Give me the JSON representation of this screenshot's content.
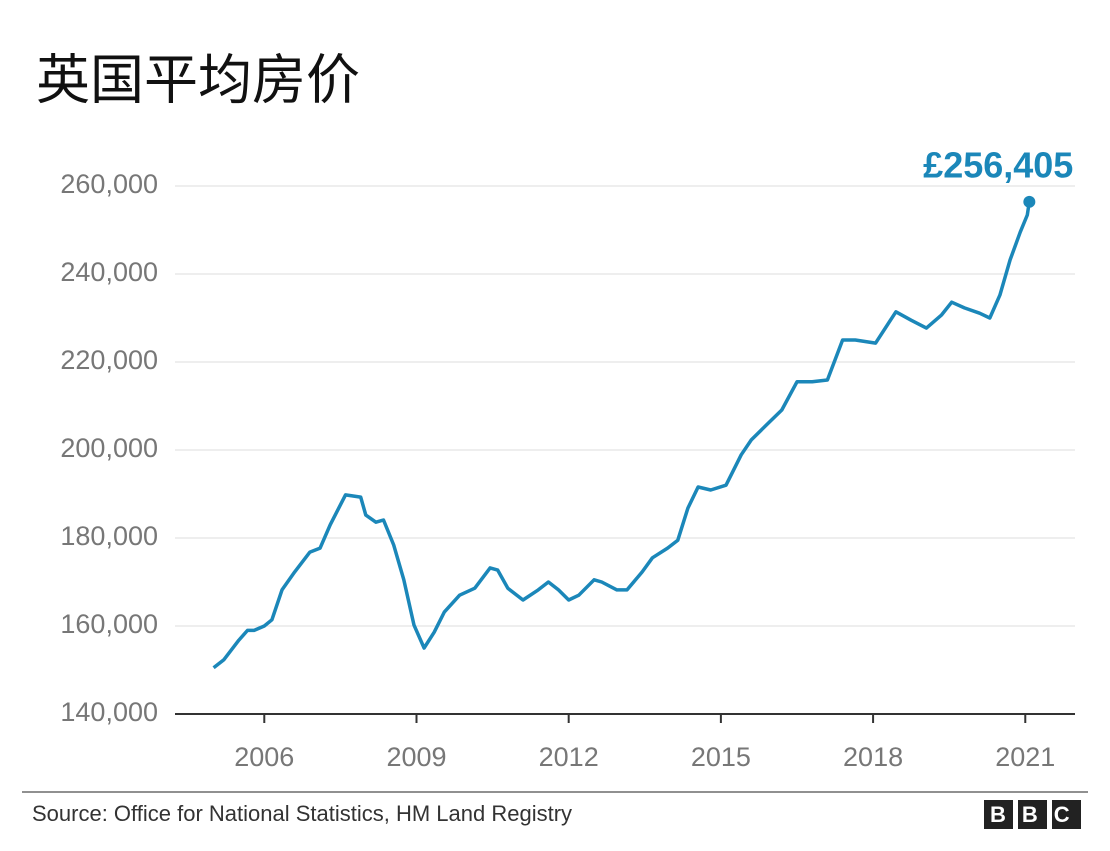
{
  "chart_data": {
    "type": "line",
    "title": "英国平均房价",
    "annotation": "£256,405",
    "source": "Source: Office for National Statistics, HM Land Registry",
    "logo": "BBC",
    "xlim": [
      2004.24,
      2021.98
    ],
    "xticks": [
      2006,
      2009,
      2012,
      2015,
      2018,
      2021
    ],
    "ylim": [
      140000,
      260000
    ],
    "yticks": [
      {
        "value": 140000,
        "label": "140,000"
      },
      {
        "value": 160000,
        "label": "160,000"
      },
      {
        "value": 180000,
        "label": "180,000"
      },
      {
        "value": 200000,
        "label": "200,000"
      },
      {
        "value": 220000,
        "label": "220,000"
      },
      {
        "value": 240000,
        "label": "240,000"
      },
      {
        "value": 260000,
        "label": "260,000"
      }
    ],
    "grid": true,
    "x": [
      2005.0,
      2005.2,
      2005.5,
      2005.67,
      2005.8,
      2006.0,
      2006.15,
      2006.35,
      2006.6,
      2006.9,
      2007.1,
      2007.3,
      2007.6,
      2007.9,
      2008.0,
      2008.2,
      2008.35,
      2008.55,
      2008.75,
      2008.95,
      2009.15,
      2009.35,
      2009.55,
      2009.85,
      2010.15,
      2010.45,
      2010.6,
      2010.8,
      2011.1,
      2011.4,
      2011.6,
      2011.8,
      2012.0,
      2012.2,
      2012.5,
      2012.65,
      2012.95,
      2013.15,
      2013.45,
      2013.65,
      2013.95,
      2014.15,
      2014.35,
      2014.55,
      2014.8,
      2015.1,
      2015.4,
      2015.6,
      2015.9,
      2016.2,
      2016.5,
      2016.8,
      2017.1,
      2017.4,
      2017.65,
      2018.05,
      2018.45,
      2018.75,
      2019.05,
      2019.35,
      2019.55,
      2019.8,
      2020.1,
      2020.3,
      2020.5,
      2020.7,
      2020.9,
      2021.04,
      2021.08
    ],
    "series": [
      {
        "color": "#1b87b9",
        "values": [
          150500,
          152300,
          156800,
          159000,
          159000,
          160000,
          161400,
          168200,
          172300,
          176800,
          177700,
          183000,
          189800,
          189300,
          185200,
          183600,
          184100,
          178400,
          170500,
          160200,
          155000,
          158600,
          163200,
          167000,
          168600,
          173200,
          172700,
          168600,
          165900,
          168200,
          170000,
          168200,
          165900,
          167000,
          170500,
          170000,
          168200,
          168200,
          172300,
          175500,
          177700,
          179500,
          186800,
          191600,
          190900,
          192000,
          198900,
          202300,
          205700,
          209100,
          215500,
          215500,
          215900,
          225000,
          225000,
          224300,
          231400,
          229500,
          227700,
          230700,
          233600,
          232300,
          231100,
          230000,
          235200,
          243200,
          249500,
          253400,
          256405
        ]
      }
    ]
  }
}
